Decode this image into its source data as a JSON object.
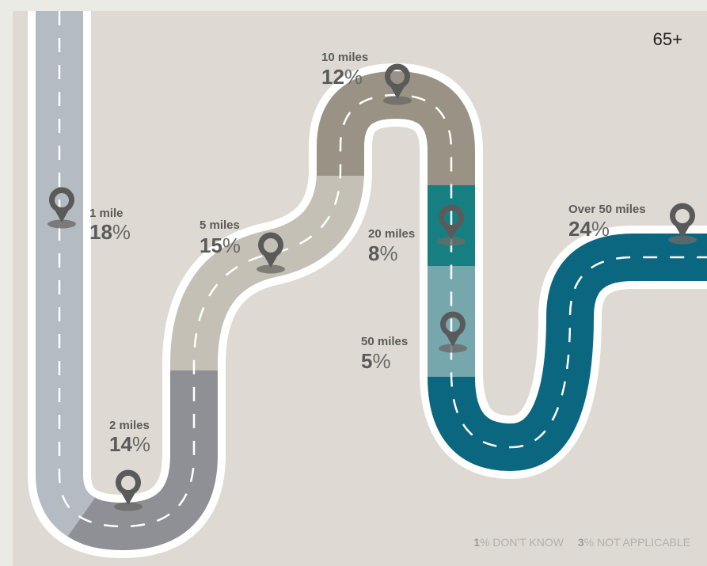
{
  "chart_data": {
    "type": "infographic-road",
    "title": "65+",
    "series": [
      {
        "label": "1 mile",
        "value": 18,
        "color": "#b5bbc2"
      },
      {
        "label": "2 miles",
        "value": 14,
        "color": "#8e9095"
      },
      {
        "label": "5 miles",
        "value": 15,
        "color": "#c4c0b6"
      },
      {
        "label": "10 miles",
        "value": 12,
        "color": "#9a9385"
      },
      {
        "label": "20 miles",
        "value": 8,
        "color": "#177f82"
      },
      {
        "label": "50 miles",
        "value": 5,
        "color": "#75a7ad"
      },
      {
        "label": "Over 50 miles",
        "value": 24,
        "color": "#0b6680"
      }
    ],
    "unit": "%",
    "footnotes": [
      {
        "value": "1",
        "text": "% DON'T KNOW"
      },
      {
        "value": "3",
        "text": "% NOT APPLICABLE"
      }
    ]
  },
  "colors": {
    "page_background": "#ebebe5",
    "panel_background": "#dedad3",
    "road_border": "#ffffff",
    "road_dash": "#ffffff",
    "marker": "#5a5a5a",
    "marker_shadow": "#6b6a66"
  }
}
